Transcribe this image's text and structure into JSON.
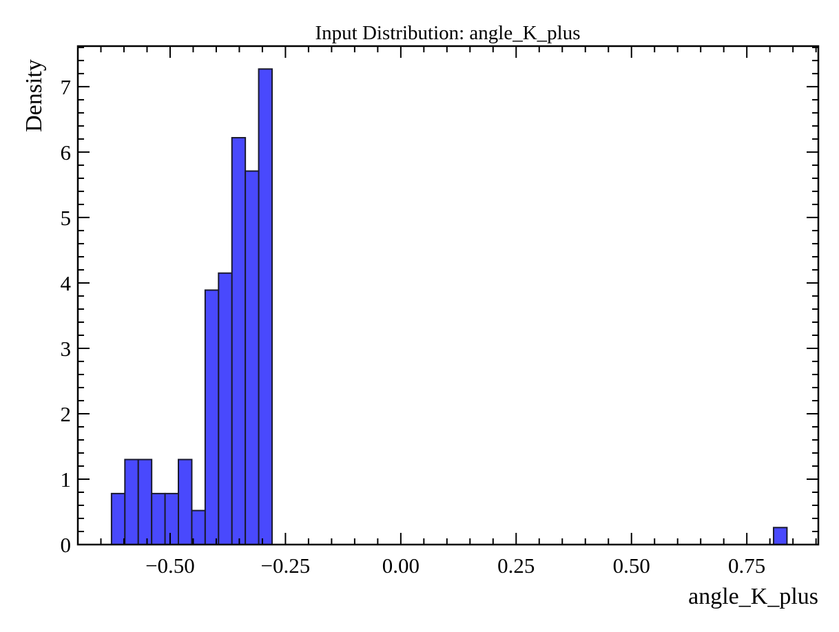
{
  "chart_data": {
    "type": "bar",
    "title": "Input Distribution: angle_K_plus",
    "xlabel": "angle_K_plus",
    "ylabel": "Density",
    "xlim": [
      -0.7,
      0.905
    ],
    "ylim": [
      0,
      7.62
    ],
    "xticks": [
      -0.5,
      -0.25,
      0.0,
      0.25,
      0.5,
      0.75
    ],
    "xtick_labels": [
      "−0.50",
      "−0.25",
      "0.00",
      "0.25",
      "0.50",
      "0.75"
    ],
    "xminor_step": 0.05,
    "yticks": [
      0,
      1,
      2,
      3,
      4,
      5,
      6,
      7
    ],
    "ytick_labels": [
      "0",
      "1",
      "2",
      "3",
      "4",
      "5",
      "6",
      "7"
    ],
    "yminor_step": 0.2,
    "bin_width": 0.029,
    "bins": [
      {
        "x0": -0.627,
        "value": 0.78
      },
      {
        "x0": -0.598,
        "value": 1.3
      },
      {
        "x0": -0.569,
        "value": 1.3
      },
      {
        "x0": -0.54,
        "value": 0.78
      },
      {
        "x0": -0.511,
        "value": 0.78
      },
      {
        "x0": -0.482,
        "value": 1.3
      },
      {
        "x0": -0.453,
        "value": 0.52
      },
      {
        "x0": -0.424,
        "value": 3.89
      },
      {
        "x0": -0.395,
        "value": 4.15
      },
      {
        "x0": -0.366,
        "value": 6.22
      },
      {
        "x0": -0.337,
        "value": 5.71
      },
      {
        "x0": -0.308,
        "value": 7.27
      },
      {
        "x0": 0.808,
        "value": 0.26
      }
    ],
    "colors": {
      "bar_fill": "#4949fd",
      "bar_edge": "#1a1a2e"
    },
    "grid": false,
    "legend": "none"
  }
}
